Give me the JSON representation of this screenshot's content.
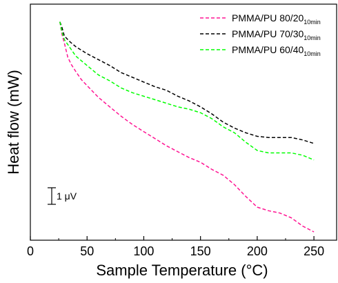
{
  "chart_data": {
    "type": "line",
    "xlabel": "Sample Temperature (°C)",
    "ylabel": "Heat flow (mW)",
    "xlim": [
      0,
      270
    ],
    "ylim": [
      0,
      1
    ],
    "xticks": [
      0,
      50,
      100,
      150,
      200,
      250
    ],
    "yticks_labeled": false,
    "grid": false,
    "legend_position": "top-right",
    "scale_bar_label": "1 μV",
    "series": [
      {
        "name": "PMMA/PU 80/20",
        "name_subscript": "10min",
        "color": "#ff1493",
        "dash": "dashed",
        "x": [
          26,
          28,
          30,
          33,
          36,
          40,
          45,
          50,
          60,
          70,
          80,
          90,
          100,
          110,
          120,
          130,
          140,
          150,
          160,
          170,
          180,
          190,
          200,
          210,
          220,
          230,
          240,
          250
        ],
        "y": [
          0.925,
          0.87,
          0.835,
          0.775,
          0.745,
          0.715,
          0.68,
          0.655,
          0.605,
          0.565,
          0.525,
          0.49,
          0.46,
          0.43,
          0.4,
          0.375,
          0.35,
          0.33,
          0.3,
          0.275,
          0.235,
          0.185,
          0.14,
          0.125,
          0.115,
          0.095,
          0.06,
          0.035
        ]
      },
      {
        "name": "PMMA/PU 70/30",
        "name_subscript": "10min",
        "color": "#000000",
        "dash": "dashed",
        "x": [
          26,
          28,
          30,
          35,
          40,
          50,
          60,
          70,
          80,
          90,
          100,
          110,
          120,
          130,
          140,
          150,
          160,
          170,
          180,
          190,
          200,
          210,
          220,
          230,
          240,
          250
        ],
        "y": [
          0.925,
          0.9,
          0.865,
          0.84,
          0.82,
          0.79,
          0.765,
          0.74,
          0.71,
          0.69,
          0.67,
          0.65,
          0.635,
          0.61,
          0.59,
          0.565,
          0.535,
          0.5,
          0.475,
          0.455,
          0.44,
          0.435,
          0.435,
          0.435,
          0.425,
          0.41
        ]
      },
      {
        "name": "PMMA/PU 60/40",
        "name_subscript": "10min",
        "color": "#00ff00",
        "dash": "dashed",
        "x": [
          26,
          28,
          30,
          35,
          40,
          50,
          60,
          70,
          80,
          90,
          100,
          110,
          120,
          130,
          140,
          150,
          160,
          170,
          180,
          190,
          200,
          210,
          220,
          230,
          240,
          250
        ],
        "y": [
          0.925,
          0.88,
          0.85,
          0.815,
          0.78,
          0.74,
          0.7,
          0.675,
          0.645,
          0.625,
          0.61,
          0.595,
          0.58,
          0.565,
          0.555,
          0.54,
          0.515,
          0.48,
          0.455,
          0.415,
          0.38,
          0.37,
          0.37,
          0.37,
          0.36,
          0.34
        ]
      }
    ]
  }
}
